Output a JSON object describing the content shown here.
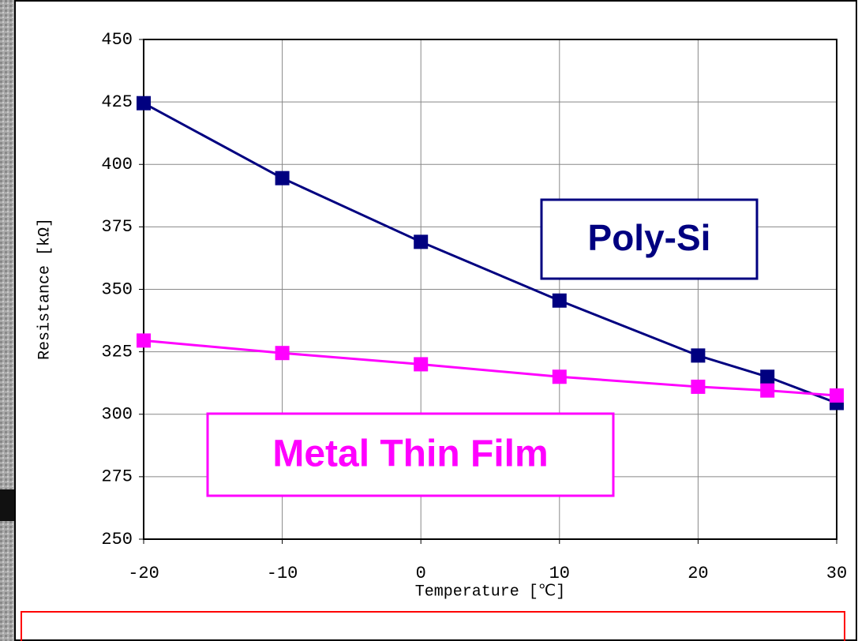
{
  "chart_data": {
    "type": "line",
    "x_label": "Temperature [℃]",
    "y_label": "Resistance [kΩ]",
    "x": [
      -20,
      -10,
      0,
      10,
      20,
      25,
      30
    ],
    "series": [
      {
        "name": "Poly-Si",
        "color": "#000080",
        "values": [
          424.5,
          394.5,
          369,
          345.5,
          323.5,
          315,
          304.5
        ]
      },
      {
        "name": "Metal Thin Film",
        "color": "#ff00ff",
        "values": [
          329.5,
          324.5,
          320,
          315,
          311,
          309.5,
          307.5
        ]
      }
    ],
    "xlim": [
      -20,
      30
    ],
    "xticks": [
      -20,
      -10,
      0,
      10,
      20,
      30
    ],
    "ylim": [
      250,
      450
    ],
    "yticks": [
      250,
      275,
      300,
      325,
      350,
      375,
      400,
      425,
      450
    ],
    "grid": true
  }
}
